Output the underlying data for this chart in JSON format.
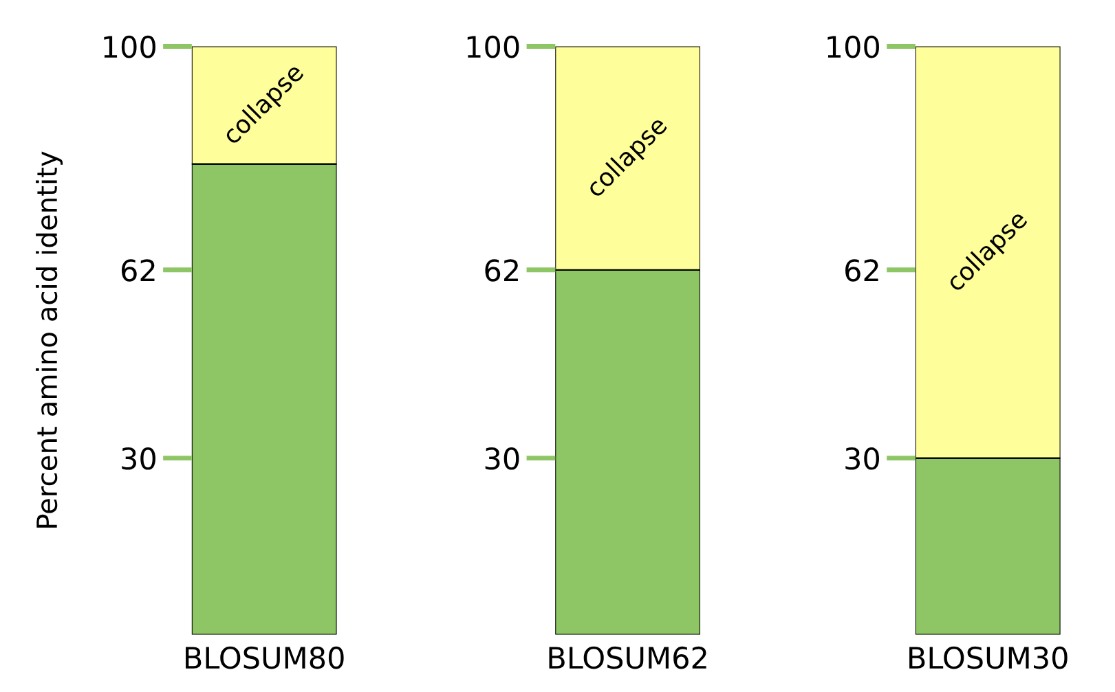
{
  "chart_data": [
    {
      "type": "bar",
      "stacked": true,
      "ylabel": "Percent amino acid identity",
      "categories": [
        "BLOSUM80"
      ],
      "ylim": [
        0,
        100
      ],
      "yticks": [
        30,
        62,
        100
      ],
      "grid": false,
      "legend": false,
      "series": [
        {
          "color": "#8ec666",
          "values": [
            80
          ]
        },
        {
          "color": "#fefe9a",
          "values": [
            20
          ]
        }
      ],
      "annotations": [
        "collapse"
      ]
    },
    {
      "type": "bar",
      "stacked": true,
      "categories": [
        "BLOSUM62"
      ],
      "ylim": [
        0,
        100
      ],
      "yticks": [
        30,
        62,
        100
      ],
      "grid": false,
      "legend": false,
      "series": [
        {
          "color": "#8ec666",
          "values": [
            62
          ]
        },
        {
          "color": "#fefe9a",
          "values": [
            38
          ]
        }
      ],
      "annotations": [
        "collapse"
      ]
    },
    {
      "type": "bar",
      "stacked": true,
      "categories": [
        "BLOSUM30"
      ],
      "ylim": [
        0,
        100
      ],
      "yticks": [
        30,
        62,
        100
      ],
      "grid": false,
      "legend": false,
      "series": [
        {
          "color": "#8ec666",
          "values": [
            30
          ]
        },
        {
          "color": "#fefe9a",
          "values": [
            70
          ]
        }
      ],
      "annotations": [
        "collapse"
      ]
    }
  ]
}
